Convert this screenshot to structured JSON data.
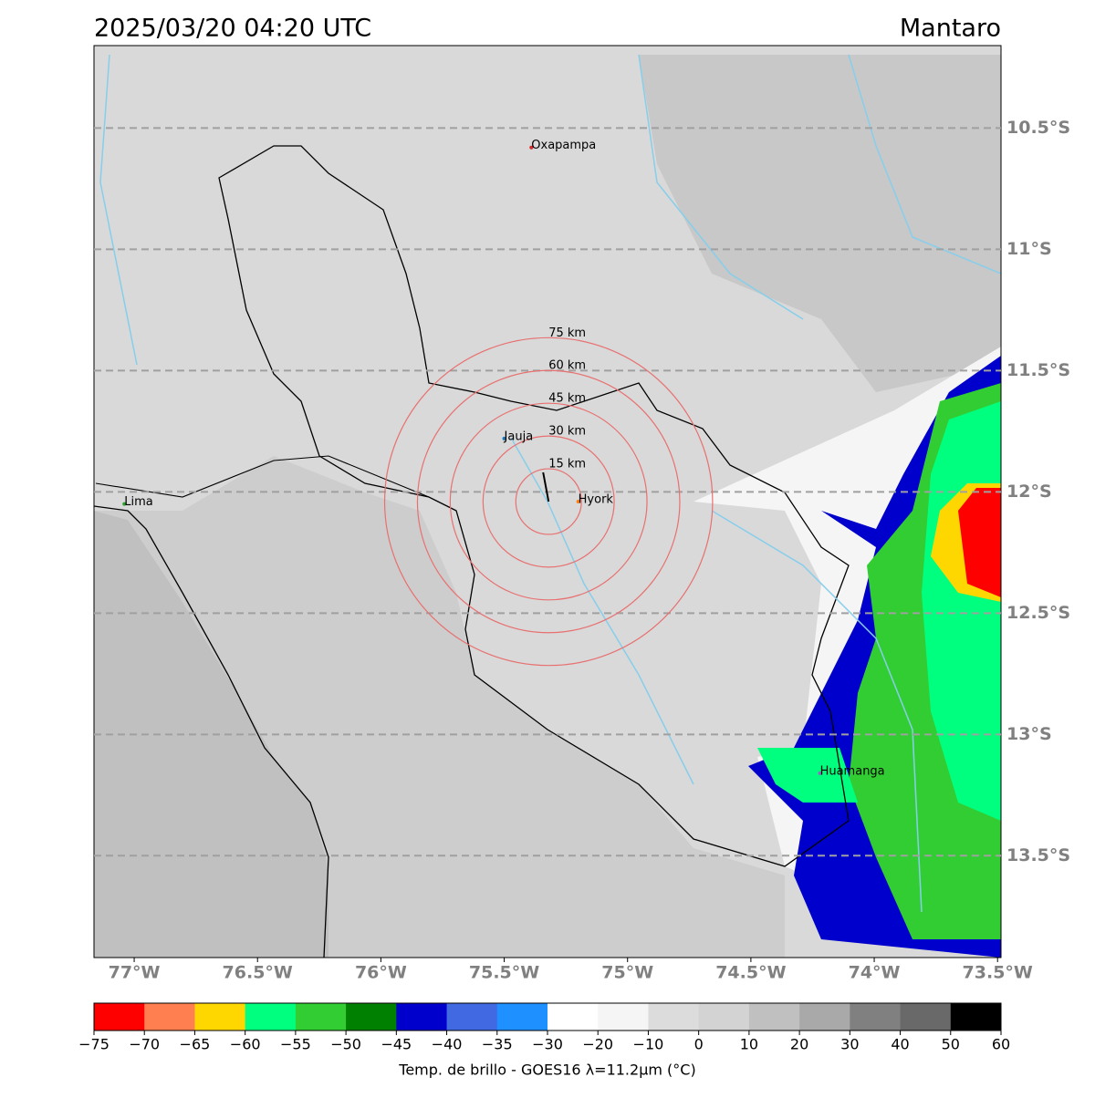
{
  "map": {
    "title": "2025/03/20 04:20 UTC",
    "region": "Mantaro",
    "lonlim": [
      -77.163,
      -73.486
    ],
    "latlim": [
      -10.16,
      -13.92
    ],
    "lonticks": [
      {
        "value": -77,
        "label": "77°W"
      },
      {
        "value": -76.5,
        "label": "76.5°W"
      },
      {
        "value": -76,
        "label": "76°W"
      },
      {
        "value": -75.5,
        "label": "75.5°W"
      },
      {
        "value": -75,
        "label": "75°W"
      },
      {
        "value": -74.5,
        "label": "74.5°W"
      },
      {
        "value": -74,
        "label": "74°W"
      },
      {
        "value": -73.5,
        "label": "73.5°W"
      }
    ],
    "latticks": [
      {
        "value": -10.5,
        "label": "10.5°S"
      },
      {
        "value": -11,
        "label": "11°S"
      },
      {
        "value": -11.5,
        "label": "11.5°S"
      },
      {
        "value": -12,
        "label": "12°S"
      },
      {
        "value": -12.5,
        "label": "12.5°S"
      },
      {
        "value": -13,
        "label": "13°S"
      },
      {
        "value": -13.5,
        "label": "13.5°S"
      }
    ],
    "places": [
      {
        "name": "Oxapampa",
        "lon": -75.39,
        "lat": -10.58,
        "color": "#d62728"
      },
      {
        "name": "Jauja",
        "lon": -75.5,
        "lat": -11.78,
        "color": "#1f77b4"
      },
      {
        "name": "Hyork",
        "lon": -75.2,
        "lat": -12.04,
        "color": "#ff7f0e"
      },
      {
        "name": "Lima",
        "lon": -77.04,
        "lat": -12.05,
        "color": "#2ca02c"
      },
      {
        "name": "Huamanga",
        "lon": -74.22,
        "lat": -13.16,
        "color": "#9467bd"
      }
    ],
    "rings": {
      "center_lon": -75.32,
      "center_lat": -12.04,
      "radii": [
        {
          "value": 15,
          "label": "15 km"
        },
        {
          "value": 30,
          "label": "30 km"
        },
        {
          "value": 45,
          "label": "45 km"
        },
        {
          "value": 60,
          "label": "60 km"
        },
        {
          "value": 75,
          "label": "75 km"
        }
      ]
    },
    "colorbar": {
      "label": "Temp. de brillo - GOES16 λ=11.2μm (°C)",
      "ticks": [
        {
          "value": -75,
          "label": "−75"
        },
        {
          "value": -70,
          "label": "−70"
        },
        {
          "value": -65,
          "label": "−65"
        },
        {
          "value": -60,
          "label": "−60"
        },
        {
          "value": -55,
          "label": "−55"
        },
        {
          "value": -50,
          "label": "−50"
        },
        {
          "value": -45,
          "label": "−45"
        },
        {
          "value": -40,
          "label": "−40"
        },
        {
          "value": -35,
          "label": "−35"
        },
        {
          "value": -30,
          "label": "−30"
        },
        {
          "value": -20,
          "label": "−20"
        },
        {
          "value": -10,
          "label": "−10"
        },
        0,
        10,
        20,
        30,
        40,
        50,
        60
      ],
      "colors": [
        "#ff0000",
        "#ff7f50",
        "#ffd700",
        "#00ff7f",
        "#32cd32",
        "#008000",
        "#0000cd",
        "#4169e1",
        "#1e90ff",
        "#ffffff",
        "#f5f5f5",
        "#dcdcdc",
        "#d3d3d3",
        "#c0c0c0",
        "#a9a9a9",
        "#808080",
        "#696969",
        "#000000"
      ]
    }
  }
}
